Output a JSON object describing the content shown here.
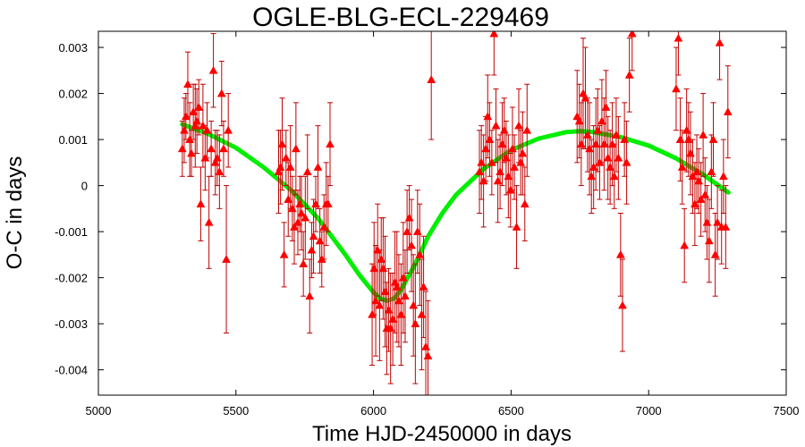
{
  "chart_data": {
    "type": "scatter",
    "title": "OGLE-BLG-ECL-229469",
    "xlabel": "Time HJD-2450000 in days",
    "ylabel": "O-C in days",
    "xlim": [
      5000,
      7500
    ],
    "ylim": [
      -0.00455,
      0.00335
    ],
    "x_ticks": [
      5000,
      5500,
      6000,
      6500,
      7000,
      7500
    ],
    "y_ticks": [
      -0.004,
      -0.003,
      -0.002,
      -0.001,
      0,
      0.001,
      0.002,
      0.003
    ],
    "y_tick_labels": [
      "-0.004",
      "-0.003",
      "-0.002",
      "-0.001",
      "0",
      "0.001",
      "0.002",
      "0.003"
    ],
    "grid": false,
    "marker_color": "#ff0000",
    "errorbar_color": "#c00000",
    "fit_color": "#00ee00",
    "series": [
      {
        "kind": "points",
        "x": [
          5305,
          5312,
          5318,
          5325,
          5332,
          5338,
          5345,
          5352,
          5358,
          5365,
          5372,
          5380,
          5388,
          5395,
          5402,
          5410,
          5418,
          5425,
          5432,
          5440,
          5448,
          5455,
          5465,
          5472,
          5655,
          5662,
          5668,
          5675,
          5682,
          5690,
          5698,
          5705,
          5712,
          5718,
          5725,
          5732,
          5738,
          5745,
          5752,
          5760,
          5768,
          5775,
          5782,
          5790,
          5798,
          5805,
          5812,
          5820,
          5828,
          5835,
          5842,
          5995,
          6002,
          6008,
          6015,
          6022,
          6028,
          6035,
          6042,
          6048,
          6055,
          6062,
          6070,
          6078,
          6085,
          6092,
          6100,
          6108,
          6115,
          6122,
          6130,
          6138,
          6145,
          6152,
          6160,
          6168,
          6175,
          6182,
          6190,
          6198,
          6210,
          6385,
          6392,
          6400,
          6408,
          6415,
          6422,
          6430,
          6438,
          6445,
          6452,
          6460,
          6468,
          6475,
          6482,
          6490,
          6498,
          6505,
          6512,
          6520,
          6528,
          6535,
          6542,
          6550,
          6558,
          6740,
          6748,
          6755,
          6762,
          6770,
          6778,
          6785,
          6792,
          6800,
          6808,
          6815,
          6822,
          6830,
          6838,
          6845,
          6852,
          6860,
          6868,
          6875,
          6882,
          6890,
          6898,
          6905,
          6912,
          6920,
          6930,
          6940,
          7100,
          7108,
          7115,
          7122,
          7130,
          7138,
          7145,
          7152,
          7160,
          7168,
          7175,
          7182,
          7190,
          7198,
          7205,
          7212,
          7220,
          7228,
          7235,
          7242,
          7250,
          7258,
          7265,
          7272,
          7280,
          7288
        ],
        "y": [
          0.0008,
          0.0012,
          0.0015,
          0.0022,
          0.001,
          0.0007,
          0.0016,
          0.0013,
          0.0014,
          0.0017,
          -0.0004,
          0.0013,
          0.0006,
          0.0012,
          -0.0008,
          0.0008,
          0.0025,
          0.0005,
          0.0006,
          0.0003,
          0.002,
          0.0008,
          -0.0016,
          0.0012,
          0.0003,
          0.0004,
          0.0009,
          -0.0015,
          0.0006,
          -0.0003,
          0.0004,
          -0.0005,
          -0.0009,
          0.0008,
          -0.0008,
          -0.0004,
          -0.0006,
          -0.0017,
          -0.0007,
          0.0003,
          -0.0024,
          -0.0014,
          -0.0011,
          -0.0004,
          0.0004,
          -0.0012,
          -0.0016,
          -0.0009,
          -0.0004,
          -0.0004,
          0.0009,
          -0.0028,
          -0.0018,
          -0.0025,
          -0.0014,
          -0.0026,
          -0.0016,
          -0.0018,
          -0.0023,
          -0.0031,
          -0.0027,
          -0.0031,
          -0.0029,
          -0.0021,
          -0.0022,
          -0.0025,
          -0.0028,
          -0.002,
          -0.0024,
          -0.001,
          -0.0007,
          -0.0013,
          -0.0026,
          -0.003,
          -0.001,
          -0.0015,
          -0.0028,
          -0.0022,
          -0.0035,
          -0.0037,
          0.0023,
          0.0003,
          0.0005,
          0.0001,
          0.0008,
          0.0015,
          0.001,
          0.0005,
          0.0033,
          0.0013,
          0.0001,
          0.0003,
          0.0009,
          0.0012,
          0.0006,
          0.0002,
          -0.0001,
          0.0008,
          0.0004,
          -0.0009,
          0.0013,
          0.0005,
          0.0007,
          -0.0004,
          0.0012,
          0.0015,
          0.0014,
          0.0009,
          0.002,
          0.0019,
          0.0011,
          0.0008,
          0.0002,
          0.0004,
          0.0009,
          0.0012,
          0.0005,
          0.0014,
          0.0009,
          0.0017,
          0.0006,
          0.0004,
          0.0009,
          0.0002,
          0.0011,
          0.0006,
          -0.0015,
          -0.0026,
          0.001,
          0.0005,
          0.0024,
          0.0033,
          0.0021,
          0.0032,
          0.001,
          0.0004,
          -0.0013,
          0.0012,
          0.001,
          0.0007,
          0.0002,
          -0.0004,
          0.0003,
          0.0001,
          -0.0003,
          0.0011,
          -0.0002,
          -0.0008,
          -0.0012,
          0.0003,
          0.001,
          -0.0015,
          -0.0008,
          0.0031,
          -0.0009,
          0.0002,
          -0.0009,
          0.0016
        ],
        "err": [
          0.0006,
          0.0007,
          0.0005,
          0.0007,
          0.0008,
          0.0005,
          0.0006,
          0.0009,
          0.0007,
          0.0006,
          0.0008,
          0.0009,
          0.0007,
          0.0006,
          0.001,
          0.0006,
          0.0008,
          0.0007,
          0.0006,
          0.0008,
          0.0007,
          0.0006,
          0.0016,
          0.0008,
          0.0009,
          0.0008,
          0.001,
          0.0007,
          0.0006,
          0.0008,
          0.0009,
          0.0007,
          0.0008,
          0.001,
          0.0007,
          0.0006,
          0.0008,
          0.0007,
          0.0009,
          0.0008,
          0.0008,
          0.0006,
          0.0008,
          0.0006,
          0.0009,
          0.0007,
          0.0006,
          0.0007,
          0.0009,
          0.0006,
          0.0009,
          0.0011,
          0.001,
          0.0012,
          0.001,
          0.0012,
          0.0009,
          0.0011,
          0.0012,
          0.001,
          0.0009,
          0.0012,
          0.001,
          0.0011,
          0.0012,
          0.001,
          0.0011,
          0.0012,
          0.001,
          0.0009,
          0.0007,
          0.001,
          0.0011,
          0.0013,
          0.0009,
          0.0011,
          0.0012,
          0.0011,
          0.0012,
          0.0012,
          0.0013,
          0.0009,
          0.0008,
          0.001,
          0.0007,
          0.0009,
          0.0008,
          0.0007,
          0.0009,
          0.0008,
          0.0009,
          0.0008,
          0.0009,
          0.0007,
          0.0008,
          0.0009,
          0.0008,
          0.0009,
          0.0007,
          0.0009,
          0.0008,
          0.0007,
          0.0009,
          0.0008,
          0.001,
          0.001,
          0.0008,
          0.0009,
          0.0012,
          0.0011,
          0.0008,
          0.001,
          0.0008,
          0.0009,
          0.001,
          0.0009,
          0.0008,
          0.0009,
          0.001,
          0.0008,
          0.0009,
          0.0008,
          0.0009,
          0.0007,
          0.0008,
          0.0009,
          0.0009,
          0.001,
          0.0008,
          0.0009,
          0.0008,
          0.0008,
          0.0009,
          0.0008,
          0.0009,
          0.0008,
          0.0008,
          0.0009,
          0.0008,
          0.0009,
          0.0008,
          0.0009,
          0.0008,
          0.0007,
          0.0008,
          0.0009,
          0.0008,
          0.0008,
          0.0009,
          0.0008,
          0.0008,
          0.0009,
          0.0008,
          0.0008,
          0.0008,
          0.0008,
          0.0009,
          0.001
        ]
      },
      {
        "kind": "fit",
        "x": [
          5305,
          5400,
          5500,
          5600,
          5700,
          5800,
          5900,
          5950,
          6000,
          6025,
          6050,
          6075,
          6100,
          6150,
          6200,
          6250,
          6300,
          6400,
          6500,
          6600,
          6700,
          6750,
          6800,
          6900,
          7000,
          7100,
          7200,
          7290
        ],
        "y": [
          0.00133,
          0.00112,
          0.00082,
          0.0004,
          -0.0001,
          -0.00072,
          -0.00152,
          -0.00195,
          -0.00232,
          -0.00246,
          -0.0025,
          -0.00245,
          -0.00226,
          -0.00172,
          -0.00109,
          -0.0006,
          -0.0002,
          0.00036,
          0.00077,
          0.00102,
          0.00116,
          0.00118,
          0.00116,
          0.00105,
          0.00087,
          0.00059,
          0.00023,
          -0.00015
        ]
      }
    ]
  }
}
